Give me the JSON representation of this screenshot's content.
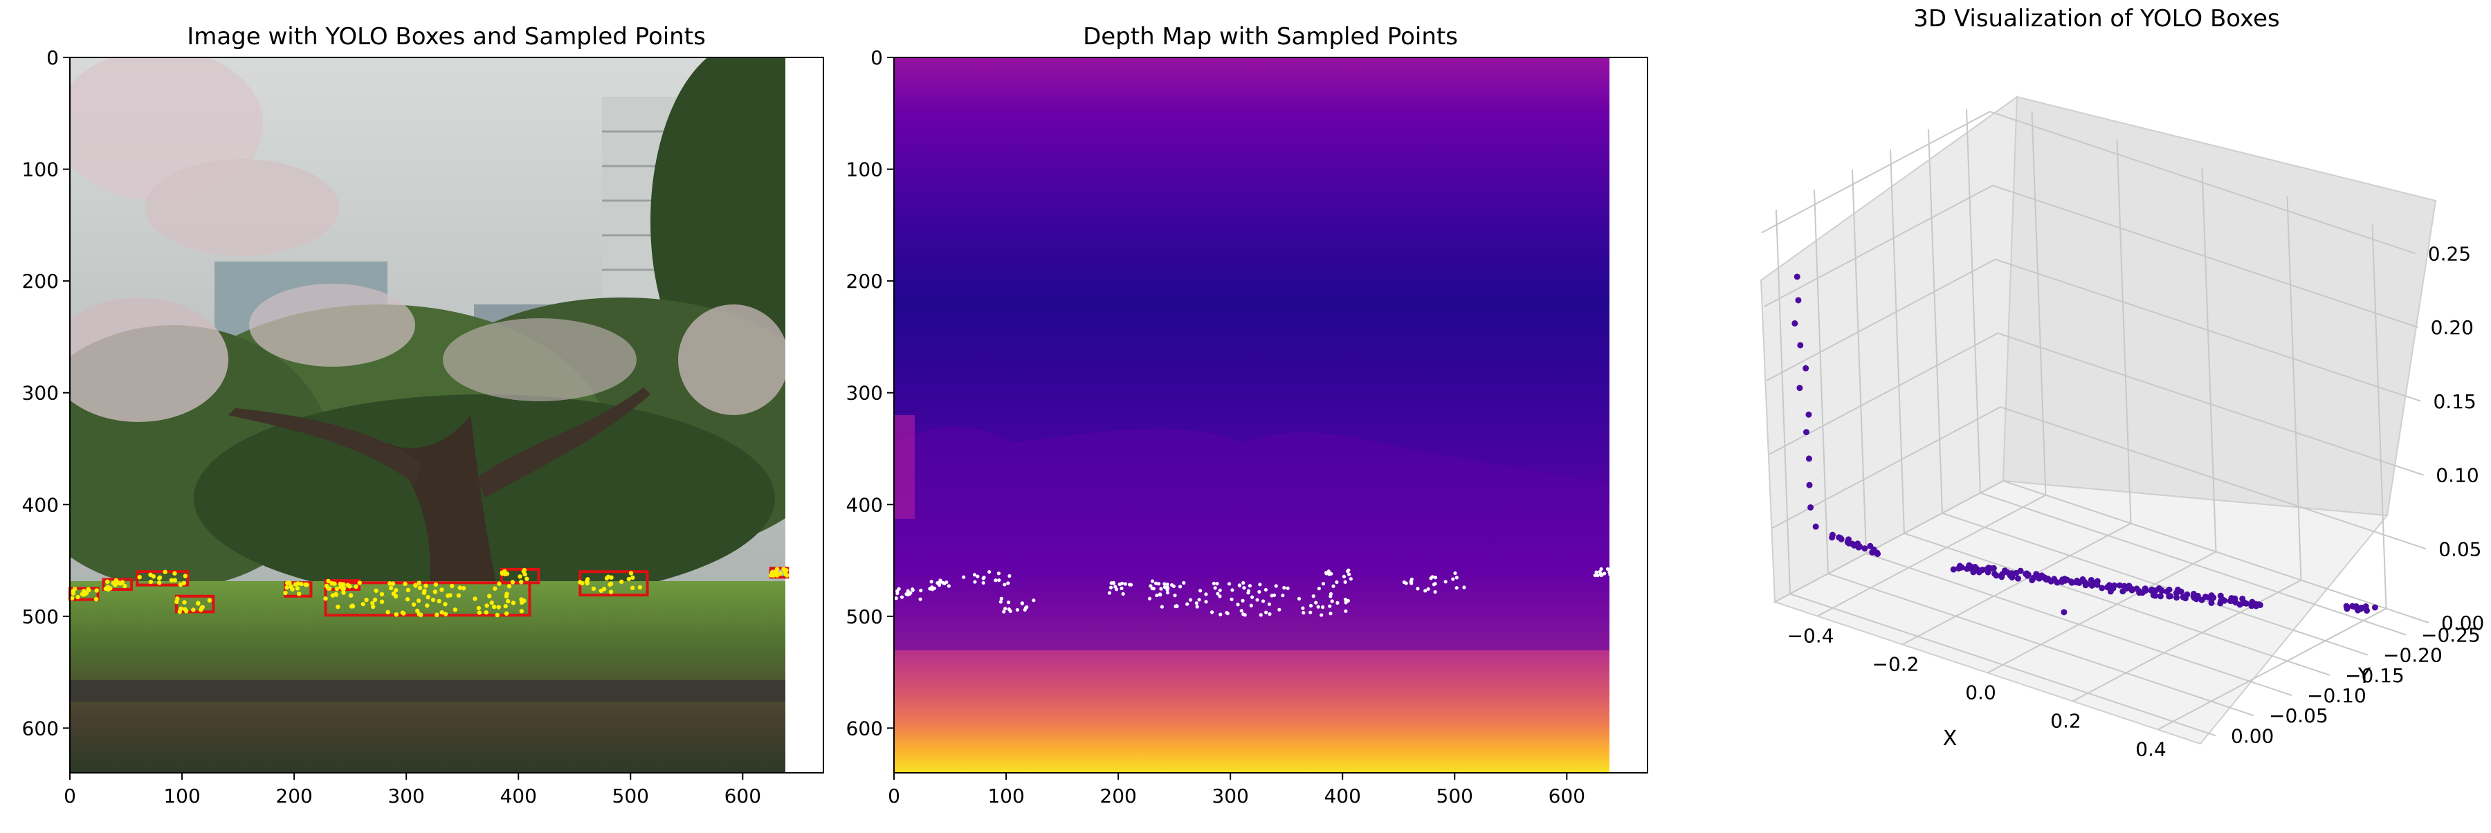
{
  "panels": [
    {
      "title": "Image with YOLO Boxes and Sampled Points",
      "x_ticks": [
        "0",
        "100",
        "200",
        "300",
        "400",
        "500",
        "600"
      ],
      "y_ticks": [
        "0",
        "100",
        "200",
        "300",
        "400",
        "500",
        "600"
      ],
      "x_range": [
        0,
        672
      ],
      "y_range": [
        0,
        640
      ]
    },
    {
      "title": "Depth Map with Sampled Points",
      "x_ticks": [
        "0",
        "100",
        "200",
        "300",
        "400",
        "500",
        "600"
      ],
      "y_ticks": [
        "0",
        "100",
        "200",
        "300",
        "400",
        "500",
        "600"
      ],
      "x_range": [
        0,
        672
      ],
      "y_range": [
        0,
        640
      ]
    },
    {
      "title": "3D Visualization of YOLO Boxes",
      "x_label": "X",
      "y_label": "Y",
      "x_ticks": [
        "−0.4",
        "−0.2",
        "0.0",
        "0.2",
        "0.4"
      ],
      "y_ticks": [
        "0.00",
        "−0.05",
        "−0.10",
        "−0.15",
        "−0.20",
        "−0.25"
      ],
      "z_ticks": [
        "0.25",
        "0.20",
        "0.15",
        "0.10",
        "0.05",
        "0.00"
      ]
    }
  ],
  "chart_data": [
    {
      "type": "scatter",
      "title": "Image with YOLO Boxes and Sampled Points",
      "xlim": [
        0,
        672
      ],
      "ylim": [
        640,
        0
      ],
      "image_extent": [
        0,
        640,
        640,
        0
      ],
      "box_color": "#dd1111",
      "point_color": "#ffee00",
      "boxes": [
        {
          "x0": 0,
          "y0": 475,
          "x1": 25,
          "y1": 485
        },
        {
          "x0": 30,
          "y0": 467,
          "x1": 55,
          "y1": 476
        },
        {
          "x0": 60,
          "y0": 460,
          "x1": 105,
          "y1": 472
        },
        {
          "x0": 95,
          "y0": 482,
          "x1": 128,
          "y1": 496
        },
        {
          "x0": 192,
          "y0": 470,
          "x1": 215,
          "y1": 482
        },
        {
          "x0": 228,
          "y0": 468,
          "x1": 258,
          "y1": 476
        },
        {
          "x0": 228,
          "y0": 470,
          "x1": 410,
          "y1": 499
        },
        {
          "x0": 385,
          "y0": 458,
          "x1": 418,
          "y1": 470
        },
        {
          "x0": 455,
          "y0": 460,
          "x1": 515,
          "y1": 481
        },
        {
          "x0": 625,
          "y0": 457,
          "x1": 640,
          "y1": 465
        }
      ]
    },
    {
      "type": "scatter",
      "title": "Depth Map with Sampled Points",
      "xlim": [
        0,
        672
      ],
      "ylim": [
        640,
        0
      ],
      "image_extent": [
        0,
        640,
        640,
        0
      ],
      "colormap": "plasma",
      "point_color": "#ffffff"
    },
    {
      "type": "scatter3d",
      "title": "3D Visualization of YOLO Boxes",
      "xlabel": "X",
      "ylabel": "Y",
      "xlim": [
        -0.5,
        0.5
      ],
      "ylim": [
        -0.28,
        0.02
      ],
      "zlim": [
        0,
        0.26
      ],
      "point_color": "#4b0aa0",
      "clusters": [
        {
          "x": [
            -0.46,
            -0.44
          ],
          "y": [
            0.0,
            0.0
          ],
          "z": [
            0.22,
            0.05
          ]
        },
        {
          "x": [
            -0.43,
            -0.36
          ],
          "y": [
            -0.02,
            -0.04
          ],
          "z": [
            0.04,
            0.03
          ]
        },
        {
          "x": [
            -0.25,
            0.25
          ],
          "y": [
            -0.08,
            -0.2
          ],
          "z": [
            0.02,
            0.01
          ]
        },
        {
          "x": [
            0.38,
            0.42
          ],
          "y": [
            -0.24,
            -0.25
          ],
          "z": [
            0.01,
            0.01
          ]
        },
        {
          "x": [
            0.15,
            0.15
          ],
          "y": [
            0.0,
            0.0
          ],
          "z": [
            0.05,
            0.05
          ]
        }
      ]
    }
  ]
}
